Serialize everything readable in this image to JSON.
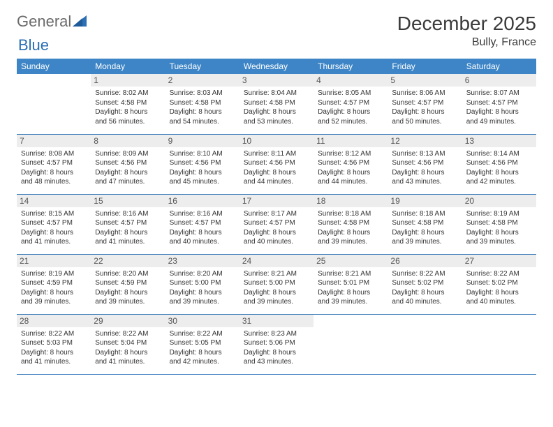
{
  "logo": {
    "part1": "General",
    "part2": "Blue"
  },
  "title": "December 2025",
  "location": "Bully, France",
  "colors": {
    "header_bg": "#3d85c6",
    "header_text": "#ffffff",
    "daynum_bg": "#ededed",
    "rule": "#2b6fb5",
    "logo_gray": "#6b6b6b",
    "logo_blue": "#2b6fb5"
  },
  "weekdays": [
    "Sunday",
    "Monday",
    "Tuesday",
    "Wednesday",
    "Thursday",
    "Friday",
    "Saturday"
  ],
  "first_weekday_index": 1,
  "days": [
    {
      "n": 1,
      "sunrise": "8:02 AM",
      "sunset": "4:58 PM",
      "daylight": "8 hours and 56 minutes."
    },
    {
      "n": 2,
      "sunrise": "8:03 AM",
      "sunset": "4:58 PM",
      "daylight": "8 hours and 54 minutes."
    },
    {
      "n": 3,
      "sunrise": "8:04 AM",
      "sunset": "4:58 PM",
      "daylight": "8 hours and 53 minutes."
    },
    {
      "n": 4,
      "sunrise": "8:05 AM",
      "sunset": "4:57 PM",
      "daylight": "8 hours and 52 minutes."
    },
    {
      "n": 5,
      "sunrise": "8:06 AM",
      "sunset": "4:57 PM",
      "daylight": "8 hours and 50 minutes."
    },
    {
      "n": 6,
      "sunrise": "8:07 AM",
      "sunset": "4:57 PM",
      "daylight": "8 hours and 49 minutes."
    },
    {
      "n": 7,
      "sunrise": "8:08 AM",
      "sunset": "4:57 PM",
      "daylight": "8 hours and 48 minutes."
    },
    {
      "n": 8,
      "sunrise": "8:09 AM",
      "sunset": "4:56 PM",
      "daylight": "8 hours and 47 minutes."
    },
    {
      "n": 9,
      "sunrise": "8:10 AM",
      "sunset": "4:56 PM",
      "daylight": "8 hours and 45 minutes."
    },
    {
      "n": 10,
      "sunrise": "8:11 AM",
      "sunset": "4:56 PM",
      "daylight": "8 hours and 44 minutes."
    },
    {
      "n": 11,
      "sunrise": "8:12 AM",
      "sunset": "4:56 PM",
      "daylight": "8 hours and 44 minutes."
    },
    {
      "n": 12,
      "sunrise": "8:13 AM",
      "sunset": "4:56 PM",
      "daylight": "8 hours and 43 minutes."
    },
    {
      "n": 13,
      "sunrise": "8:14 AM",
      "sunset": "4:56 PM",
      "daylight": "8 hours and 42 minutes."
    },
    {
      "n": 14,
      "sunrise": "8:15 AM",
      "sunset": "4:57 PM",
      "daylight": "8 hours and 41 minutes."
    },
    {
      "n": 15,
      "sunrise": "8:16 AM",
      "sunset": "4:57 PM",
      "daylight": "8 hours and 41 minutes."
    },
    {
      "n": 16,
      "sunrise": "8:16 AM",
      "sunset": "4:57 PM",
      "daylight": "8 hours and 40 minutes."
    },
    {
      "n": 17,
      "sunrise": "8:17 AM",
      "sunset": "4:57 PM",
      "daylight": "8 hours and 40 minutes."
    },
    {
      "n": 18,
      "sunrise": "8:18 AM",
      "sunset": "4:58 PM",
      "daylight": "8 hours and 39 minutes."
    },
    {
      "n": 19,
      "sunrise": "8:18 AM",
      "sunset": "4:58 PM",
      "daylight": "8 hours and 39 minutes."
    },
    {
      "n": 20,
      "sunrise": "8:19 AM",
      "sunset": "4:58 PM",
      "daylight": "8 hours and 39 minutes."
    },
    {
      "n": 21,
      "sunrise": "8:19 AM",
      "sunset": "4:59 PM",
      "daylight": "8 hours and 39 minutes."
    },
    {
      "n": 22,
      "sunrise": "8:20 AM",
      "sunset": "4:59 PM",
      "daylight": "8 hours and 39 minutes."
    },
    {
      "n": 23,
      "sunrise": "8:20 AM",
      "sunset": "5:00 PM",
      "daylight": "8 hours and 39 minutes."
    },
    {
      "n": 24,
      "sunrise": "8:21 AM",
      "sunset": "5:00 PM",
      "daylight": "8 hours and 39 minutes."
    },
    {
      "n": 25,
      "sunrise": "8:21 AM",
      "sunset": "5:01 PM",
      "daylight": "8 hours and 39 minutes."
    },
    {
      "n": 26,
      "sunrise": "8:22 AM",
      "sunset": "5:02 PM",
      "daylight": "8 hours and 40 minutes."
    },
    {
      "n": 27,
      "sunrise": "8:22 AM",
      "sunset": "5:02 PM",
      "daylight": "8 hours and 40 minutes."
    },
    {
      "n": 28,
      "sunrise": "8:22 AM",
      "sunset": "5:03 PM",
      "daylight": "8 hours and 41 minutes."
    },
    {
      "n": 29,
      "sunrise": "8:22 AM",
      "sunset": "5:04 PM",
      "daylight": "8 hours and 41 minutes."
    },
    {
      "n": 30,
      "sunrise": "8:22 AM",
      "sunset": "5:05 PM",
      "daylight": "8 hours and 42 minutes."
    },
    {
      "n": 31,
      "sunrise": "8:23 AM",
      "sunset": "5:06 PM",
      "daylight": "8 hours and 43 minutes."
    }
  ],
  "labels": {
    "sunrise": "Sunrise:",
    "sunset": "Sunset:",
    "daylight": "Daylight:"
  }
}
